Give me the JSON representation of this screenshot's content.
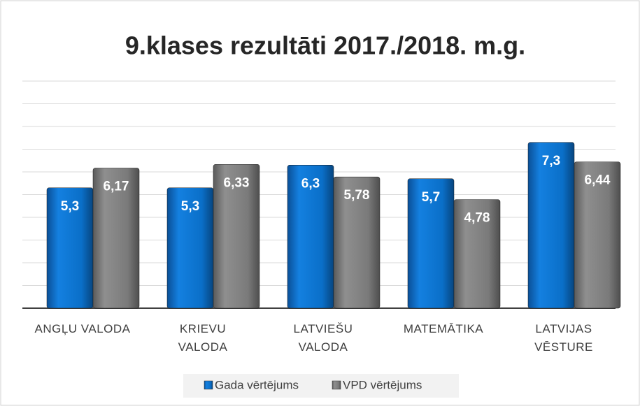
{
  "chart_data": {
    "type": "bar",
    "title": "9.klases rezultāti 2017./2018. m.g.",
    "categories": [
      "ANGĻU VALODA",
      "KRIEVU VALODA",
      "LATVIEŠU VALODA",
      "MATEMĀTIKA",
      "LATVIJAS VĒSTURE"
    ],
    "series": [
      {
        "name": "Gada vērtējums",
        "color": "#0a6fc8",
        "values": [
          5.3,
          5.3,
          6.3,
          5.7,
          7.3
        ],
        "value_labels": [
          "5,3",
          "5,3",
          "6,3",
          "5,7",
          "7,3"
        ]
      },
      {
        "name": "VPD vērtējums",
        "color": "#7f7f7f",
        "values": [
          6.17,
          6.33,
          5.78,
          4.78,
          6.44
        ],
        "value_labels": [
          "6,17",
          "6,33",
          "5,78",
          "4,78",
          "6,44"
        ]
      }
    ],
    "ylim": [
      0,
      10
    ],
    "yticks": [
      0,
      1,
      2,
      3,
      4,
      5,
      6,
      7,
      8,
      9,
      10
    ],
    "grid": true,
    "legend": "bottom"
  }
}
